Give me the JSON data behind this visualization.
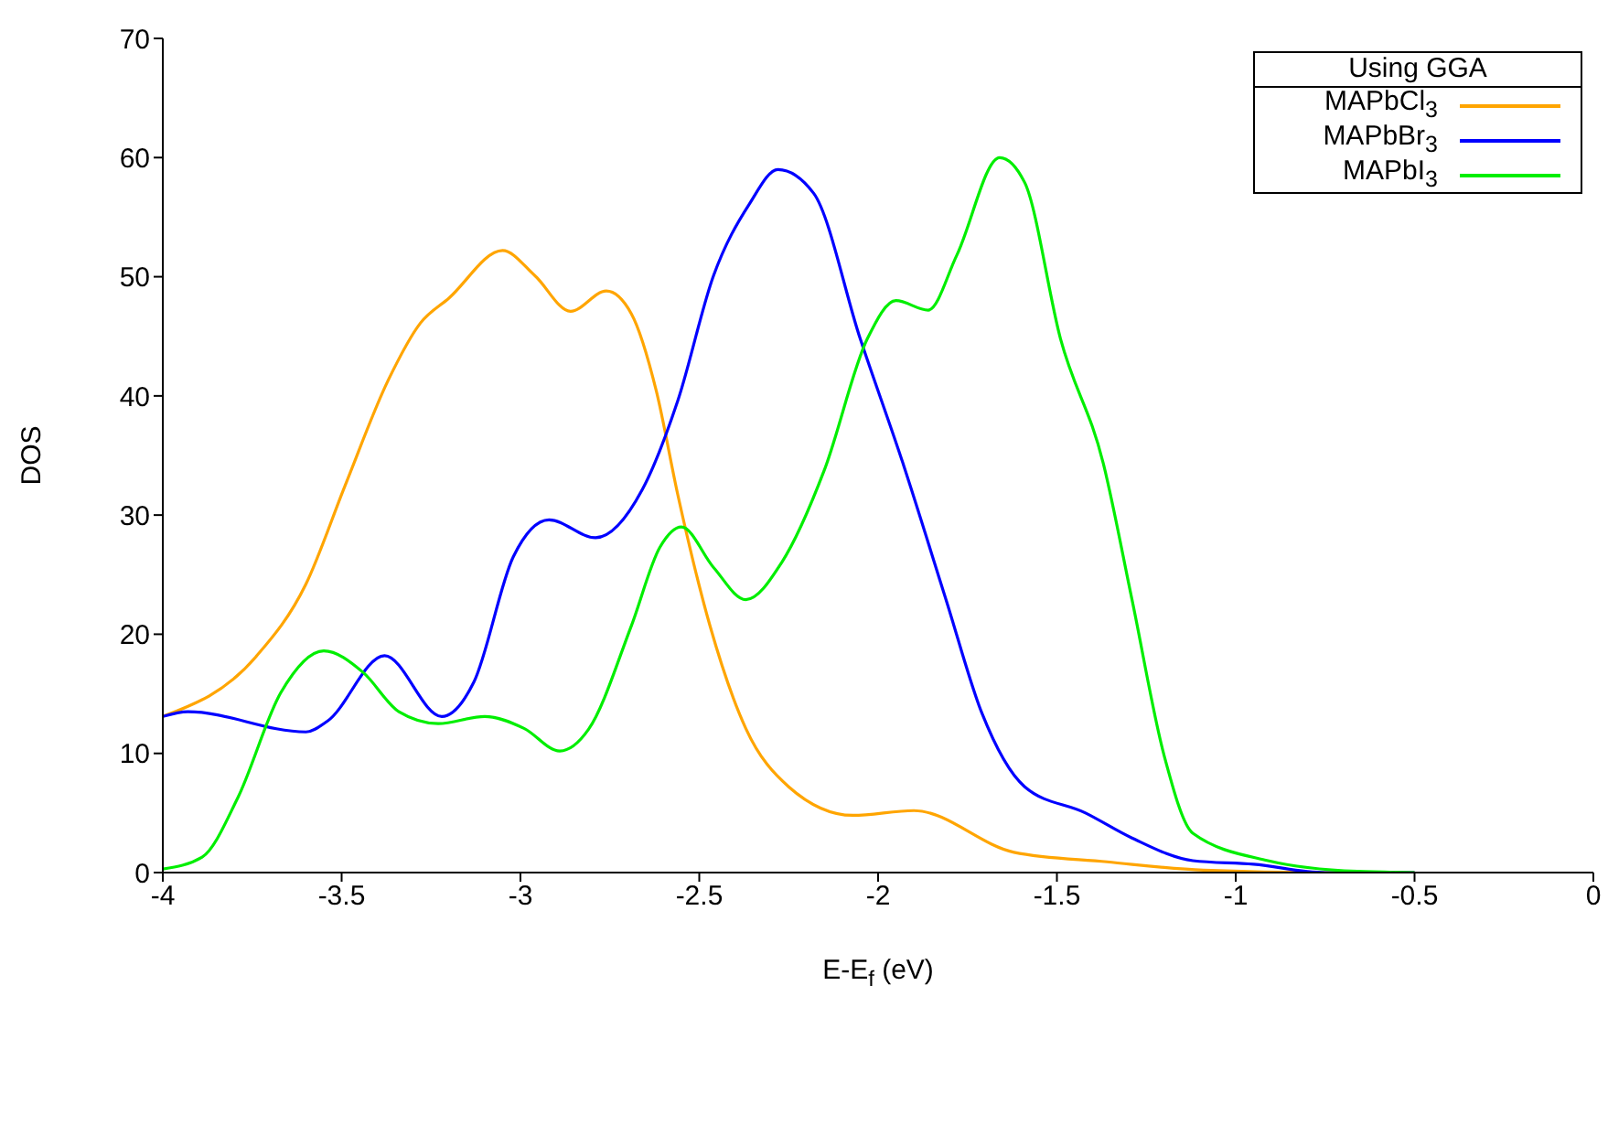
{
  "chart_data": {
    "type": "line",
    "xlabel": "E-E$_{f}$ (eV)",
    "ylabel": "DOS",
    "legend_title": "Using GGA",
    "legend": "top right",
    "grid": false,
    "marker": "none",
    "line_style": "solid",
    "xlim": [
      -4,
      0
    ],
    "xticks": [
      -4,
      -3.5,
      -3,
      -2.5,
      -2,
      -1.5,
      -1,
      -0.5,
      0
    ],
    "ylim": [
      0,
      70
    ],
    "yticks": [
      0,
      10,
      20,
      30,
      40,
      50,
      60,
      70
    ],
    "series": [
      {
        "name": "MAPbCl$_{3}$",
        "color": "#ffa500",
        "x": [
          -4,
          -3.74,
          -3.6,
          -3.49,
          -3.37,
          -3.28,
          -3.2,
          -3.05,
          -2.96,
          -2.86,
          -2.76,
          -2.69,
          -2.62,
          -2.56,
          -2.47,
          -2.37,
          -2.25,
          -2.07,
          -1.9,
          -1.62,
          -1.36,
          -1.09,
          -0.75,
          -0.5
        ],
        "values": [
          13.1,
          18.1,
          24.2,
          32.5,
          41.3,
          46.1,
          48.2,
          52.2,
          50.1,
          47.1,
          48.8,
          46.9,
          40.4,
          31.7,
          20.7,
          12.1,
          7.2,
          4.8,
          5.2,
          1.7,
          0.9,
          0.2,
          0,
          0
        ]
      },
      {
        "name": "MAPbBr$_{3}$",
        "color": "#0000ff",
        "x": [
          -4,
          -3.93,
          -3.6,
          -3.54,
          -3.38,
          -3.22,
          -3.13,
          -3.02,
          -2.92,
          -2.79,
          -2.66,
          -2.56,
          -2.46,
          -2.36,
          -2.28,
          -2.18,
          -2.05,
          -1.93,
          -1.81,
          -1.71,
          -1.59,
          -1.42,
          -1.29,
          -1.12,
          -0.95,
          -0.75,
          -0.5
        ],
        "values": [
          13.1,
          13.5,
          11.8,
          12.7,
          18.2,
          13.1,
          16,
          26.5,
          29.6,
          28.1,
          32.1,
          39.6,
          50.1,
          56.1,
          59,
          57,
          44.8,
          34.3,
          22.9,
          13.4,
          7.2,
          5,
          2.9,
          1,
          0.7,
          0,
          0
        ]
      },
      {
        "name": "MAPbI$_{3}$",
        "color": "#00ee00",
        "x": [
          -4,
          -3.89,
          -3.79,
          -3.67,
          -3.55,
          -3.44,
          -3.34,
          -3.23,
          -3.1,
          -2.99,
          -2.89,
          -2.81,
          -2.69,
          -2.61,
          -2.55,
          -2.46,
          -2.37,
          -2.27,
          -2.15,
          -2.03,
          -1.95,
          -1.86,
          -1.78,
          -1.66,
          -1.59,
          -1.49,
          -1.37,
          -1.29,
          -1.2,
          -1.12,
          -0.91,
          -0.66,
          -0.5
        ],
        "values": [
          0.3,
          1.3,
          6.3,
          15.1,
          18.6,
          16.8,
          13.5,
          12.5,
          13.1,
          12.1,
          10.2,
          12,
          20.7,
          27.3,
          29,
          25.6,
          22.9,
          26,
          33.8,
          44.8,
          48,
          47.2,
          51.8,
          60,
          57.9,
          44.8,
          34.3,
          22.9,
          9.8,
          3.3,
          1,
          0.1,
          0
        ]
      }
    ]
  }
}
